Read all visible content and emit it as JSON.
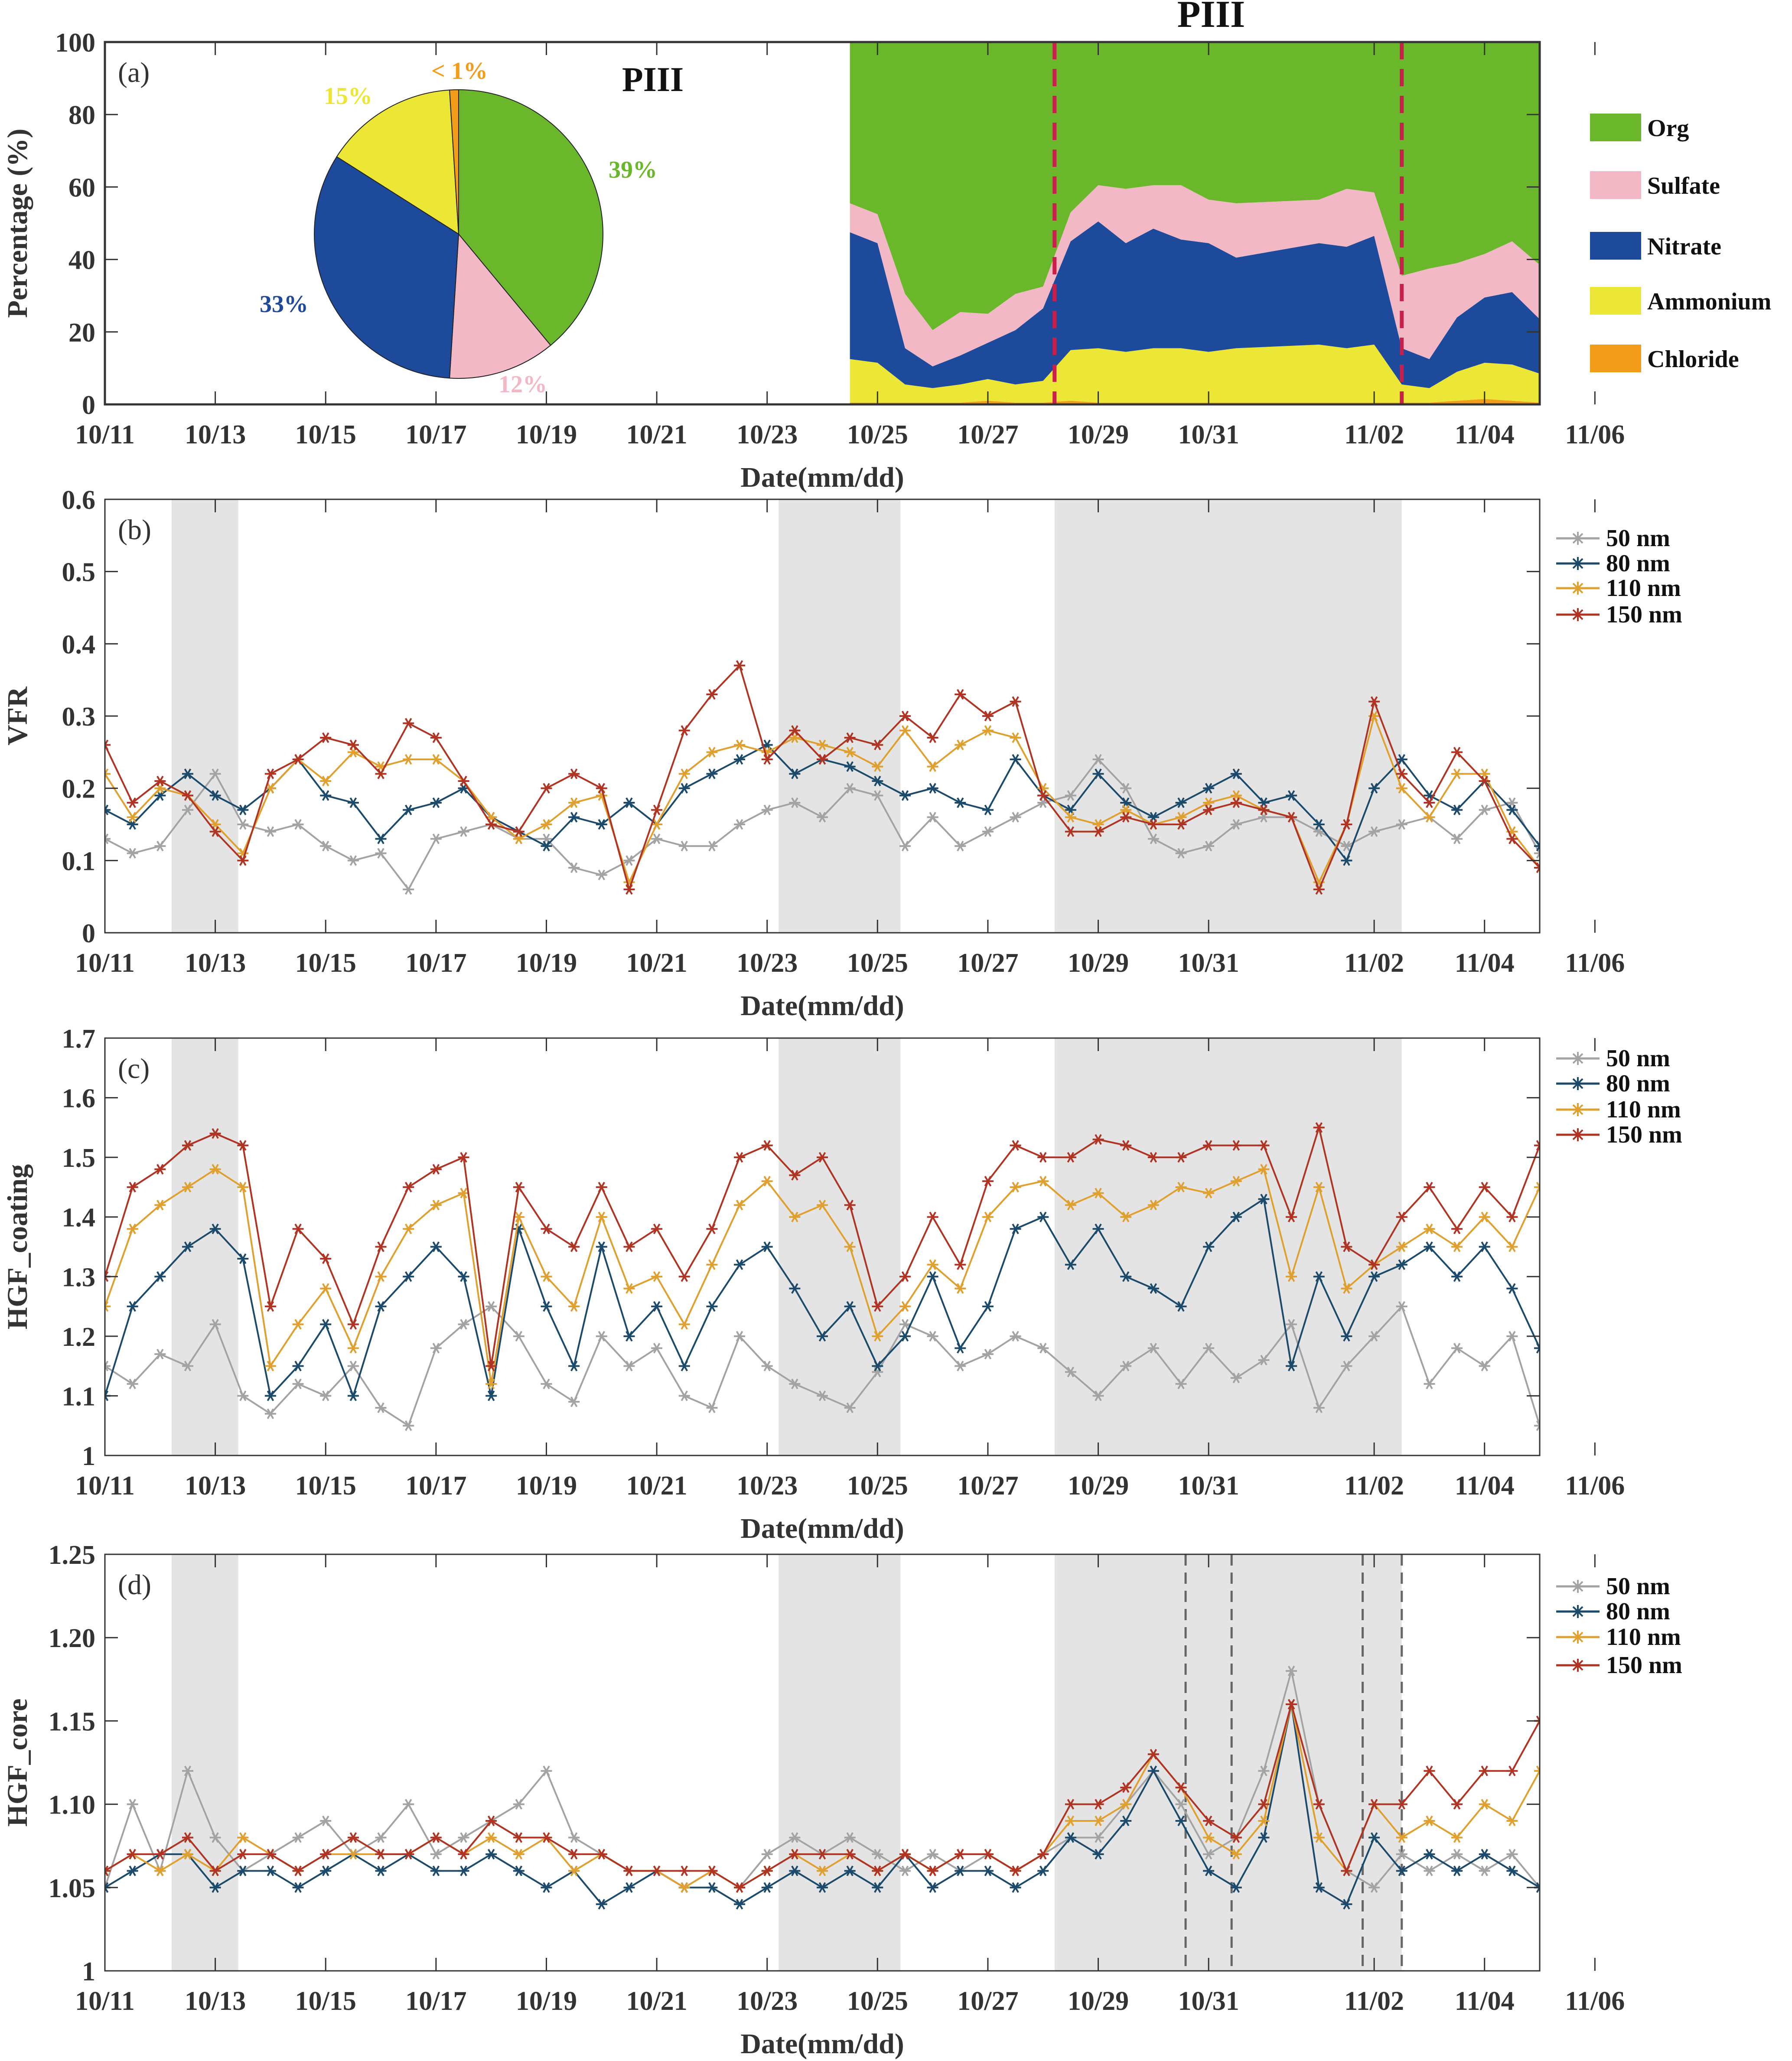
{
  "colors": {
    "Org": "#6ab72c",
    "Sulfate": "#f2b8c6",
    "Nitrate": "#1e4a9c",
    "Ammonium": "#ece636",
    "Chloride": "#f39c1a",
    "50 nm": "#a3a3a3",
    "80 nm": "#1b4a6b",
    "110 nm": "#e0a030",
    "150 nm": "#b03423",
    "shade": "#e4e4e4",
    "period_line_a": "#c8204a",
    "period_line_d": "#666666"
  },
  "x_ticks": [
    "10/11",
    "10/13",
    "10/15",
    "10/17",
    "10/19",
    "10/21",
    "10/23",
    "10/25",
    "10/27",
    "10/29",
    "10/31",
    "11/02",
    "11/04",
    "11/06"
  ],
  "x_range": [
    "10/11 00:00",
    "11/06 00:00"
  ],
  "chart_data": [
    {
      "panel": "(a)",
      "type": "area",
      "stacked": true,
      "top_title": "PIII",
      "xlabel": "Date(mm/dd)",
      "ylabel": "Percentage (%)",
      "ylim": [
        0,
        100
      ],
      "y_ticks": [
        "0",
        "20",
        "40",
        "60",
        "80",
        "100"
      ],
      "period_markers": [
        "10/28 05:00",
        "11/02 12:00"
      ],
      "legend": [
        "Org",
        "Sulfate",
        "Nitrate",
        "Ammonium",
        "Chloride"
      ],
      "x": [
        "10/24 12:00",
        "10/25 00:00",
        "10/25 12:00",
        "10/26 00:00",
        "10/26 12:00",
        "10/27 00:00",
        "10/27 12:00",
        "10/28 00:00",
        "10/28 12:00",
        "10/29 00:00",
        "10/29 12:00",
        "10/30 00:00",
        "10/30 12:00",
        "10/31 00:00",
        "10/31 12:00",
        "11/01 00:00",
        "11/01 12:00",
        "11/02 00:00",
        "11/02 12:00",
        "11/03 00:00",
        "11/03 12:00",
        "11/04 00:00",
        "11/04 12:00",
        "11/05 00:00",
        "11/05 12:00",
        "11/06 00:00"
      ],
      "series": [
        {
          "name": "Chloride",
          "values": [
            0.5,
            0.5,
            0.5,
            0.5,
            0.5,
            1,
            0.5,
            0.5,
            1,
            0.5,
            0.5,
            0.5,
            0.5,
            0.5,
            0.5,
            0.5,
            0.5,
            0.5,
            0.5,
            0.5,
            1,
            1.5,
            1,
            0.5,
            0.5,
            0.5
          ]
        },
        {
          "name": "Ammonium",
          "values": [
            12,
            11,
            5,
            4,
            5,
            6,
            5,
            6,
            14,
            15,
            14,
            15,
            15,
            14,
            15,
            16,
            15,
            16,
            5,
            4,
            8,
            10,
            10,
            8,
            10,
            8
          ]
        },
        {
          "name": "Nitrate",
          "values": [
            35,
            33,
            10,
            6,
            8,
            10,
            15,
            20,
            30,
            35,
            30,
            33,
            30,
            30,
            25,
            28,
            28,
            30,
            10,
            8,
            15,
            18,
            20,
            15,
            20,
            12
          ]
        },
        {
          "name": "Sulfate",
          "values": [
            8,
            8,
            15,
            10,
            12,
            8,
            10,
            6,
            8,
            10,
            15,
            12,
            15,
            12,
            15,
            12,
            16,
            12,
            20,
            25,
            15,
            12,
            14,
            15,
            12,
            12
          ]
        },
        {
          "name": "Org",
          "values": "remainder to 100"
        }
      ],
      "pie": {
        "title": "PIII",
        "slices": [
          {
            "name": "Org",
            "value": 39,
            "label": "39%"
          },
          {
            "name": "Sulfate",
            "value": 12,
            "label": "12%"
          },
          {
            "name": "Nitrate",
            "value": 33,
            "label": "33%"
          },
          {
            "name": "Ammonium",
            "value": 15,
            "label": "15%"
          },
          {
            "name": "Chloride",
            "value": 1,
            "label": "< 1%"
          }
        ]
      }
    },
    {
      "panel": "(b)",
      "type": "line",
      "xlabel": "Date(mm/dd)",
      "ylabel": "VFR",
      "ylim": [
        0,
        0.6
      ],
      "y_ticks": [
        "0",
        "0.1",
        "0.2",
        "0.3",
        "0.4",
        "0.5",
        "0.6"
      ],
      "shaded_periods": [
        [
          "10/12 05:00",
          "10/13 10:00"
        ],
        [
          "10/23 05:00",
          "10/25 10:00"
        ],
        [
          "10/28 05:00",
          "11/02 12:00"
        ]
      ],
      "legend": [
        "50 nm",
        "80 nm",
        "110 nm",
        "150 nm"
      ],
      "series": [
        {
          "name": "50 nm",
          "values": [
            0.13,
            0.11,
            0.12,
            0.17,
            0.22,
            0.15,
            0.14,
            0.15,
            0.12,
            0.1,
            0.11,
            0.06,
            0.13,
            0.14,
            0.15,
            0.13,
            0.13,
            0.09,
            0.08,
            0.1,
            0.13,
            0.12,
            0.12,
            0.15,
            0.17,
            0.18,
            0.16,
            0.2,
            0.19,
            0.12,
            0.16,
            0.12,
            0.14,
            0.16,
            0.18,
            0.19,
            0.24,
            0.2,
            0.13,
            0.11,
            0.12,
            0.15,
            0.16,
            0.16,
            0.14,
            0.12,
            0.14,
            0.15,
            0.16,
            0.13,
            0.17,
            0.18,
            0.11
          ]
        },
        {
          "name": "80 nm",
          "values": [
            0.17,
            0.15,
            0.19,
            0.22,
            0.19,
            0.17,
            0.2,
            0.24,
            0.19,
            0.18,
            0.13,
            0.17,
            0.18,
            0.2,
            0.16,
            0.14,
            0.12,
            0.16,
            0.15,
            0.18,
            0.15,
            0.2,
            0.22,
            0.24,
            0.26,
            0.22,
            0.24,
            0.23,
            0.21,
            0.19,
            0.2,
            0.18,
            0.17,
            0.24,
            0.19,
            0.17,
            0.22,
            0.18,
            0.16,
            0.18,
            0.2,
            0.22,
            0.18,
            0.19,
            0.15,
            0.1,
            0.2,
            0.24,
            0.19,
            0.17,
            0.21,
            0.17,
            0.12
          ]
        },
        {
          "name": "110 nm",
          "values": [
            0.22,
            0.16,
            0.2,
            0.19,
            0.15,
            0.11,
            0.2,
            0.24,
            0.21,
            0.25,
            0.23,
            0.24,
            0.24,
            0.21,
            0.16,
            0.13,
            0.15,
            0.18,
            0.19,
            0.07,
            0.15,
            0.22,
            0.25,
            0.26,
            0.25,
            0.27,
            0.26,
            0.25,
            0.23,
            0.28,
            0.23,
            0.26,
            0.28,
            0.27,
            0.2,
            0.16,
            0.15,
            0.17,
            0.15,
            0.16,
            0.18,
            0.19,
            0.17,
            0.16,
            0.07,
            0.15,
            0.3,
            0.2,
            0.16,
            0.22,
            0.22,
            0.14,
            0.09
          ]
        },
        {
          "name": "150 nm",
          "values": [
            0.26,
            0.18,
            0.21,
            0.19,
            0.14,
            0.1,
            0.22,
            0.24,
            0.27,
            0.26,
            0.22,
            0.29,
            0.27,
            0.21,
            0.15,
            0.14,
            0.2,
            0.22,
            0.2,
            0.06,
            0.17,
            0.28,
            0.33,
            0.37,
            0.24,
            0.28,
            0.24,
            0.27,
            0.26,
            0.3,
            0.27,
            0.33,
            0.3,
            0.32,
            0.19,
            0.14,
            0.14,
            0.16,
            0.15,
            0.15,
            0.17,
            0.18,
            0.17,
            0.16,
            0.06,
            0.15,
            0.32,
            0.22,
            0.18,
            0.25,
            0.21,
            0.13,
            0.09
          ]
        }
      ]
    },
    {
      "panel": "(c)",
      "type": "line",
      "xlabel": "Date(mm/dd)",
      "ylabel": "HGF_coating",
      "ylim": [
        1,
        1.7
      ],
      "y_ticks": [
        "1",
        "1.1",
        "1.2",
        "1.3",
        "1.4",
        "1.5",
        "1.6",
        "1.7"
      ],
      "shaded_periods": [
        [
          "10/12 05:00",
          "10/13 10:00"
        ],
        [
          "10/23 05:00",
          "10/25 10:00"
        ],
        [
          "10/28 05:00",
          "11/02 12:00"
        ]
      ],
      "legend": [
        "50 nm",
        "80 nm",
        "110 nm",
        "150 nm"
      ],
      "series": [
        {
          "name": "50 nm",
          "values": [
            1.15,
            1.12,
            1.17,
            1.15,
            1.22,
            1.1,
            1.07,
            1.12,
            1.1,
            1.15,
            1.08,
            1.05,
            1.18,
            1.22,
            1.25,
            1.2,
            1.12,
            1.09,
            1.2,
            1.15,
            1.18,
            1.1,
            1.08,
            1.2,
            1.15,
            1.12,
            1.1,
            1.08,
            1.14,
            1.22,
            1.2,
            1.15,
            1.17,
            1.2,
            1.18,
            1.14,
            1.1,
            1.15,
            1.18,
            1.12,
            1.18,
            1.13,
            1.16,
            1.22,
            1.08,
            1.15,
            1.2,
            1.25,
            1.12,
            1.18,
            1.15,
            1.2,
            1.05
          ]
        },
        {
          "name": "80 nm",
          "values": [
            1.1,
            1.25,
            1.3,
            1.35,
            1.38,
            1.33,
            1.1,
            1.15,
            1.22,
            1.1,
            1.25,
            1.3,
            1.35,
            1.3,
            1.1,
            1.38,
            1.25,
            1.15,
            1.35,
            1.2,
            1.25,
            1.15,
            1.25,
            1.32,
            1.35,
            1.28,
            1.2,
            1.25,
            1.15,
            1.2,
            1.3,
            1.18,
            1.25,
            1.38,
            1.4,
            1.32,
            1.38,
            1.3,
            1.28,
            1.25,
            1.35,
            1.4,
            1.43,
            1.15,
            1.3,
            1.2,
            1.3,
            1.32,
            1.35,
            1.3,
            1.35,
            1.28,
            1.18
          ]
        },
        {
          "name": "110 nm",
          "values": [
            1.25,
            1.38,
            1.42,
            1.45,
            1.48,
            1.45,
            1.15,
            1.22,
            1.28,
            1.18,
            1.3,
            1.38,
            1.42,
            1.44,
            1.12,
            1.4,
            1.3,
            1.25,
            1.4,
            1.28,
            1.3,
            1.22,
            1.32,
            1.42,
            1.46,
            1.4,
            1.42,
            1.35,
            1.2,
            1.25,
            1.32,
            1.28,
            1.4,
            1.45,
            1.46,
            1.42,
            1.44,
            1.4,
            1.42,
            1.45,
            1.44,
            1.46,
            1.48,
            1.3,
            1.45,
            1.28,
            1.32,
            1.35,
            1.38,
            1.35,
            1.4,
            1.35,
            1.45
          ]
        },
        {
          "name": "150 nm",
          "values": [
            1.3,
            1.45,
            1.48,
            1.52,
            1.54,
            1.52,
            1.25,
            1.38,
            1.33,
            1.22,
            1.35,
            1.45,
            1.48,
            1.5,
            1.15,
            1.45,
            1.38,
            1.35,
            1.45,
            1.35,
            1.38,
            1.3,
            1.38,
            1.5,
            1.52,
            1.47,
            1.5,
            1.42,
            1.25,
            1.3,
            1.4,
            1.32,
            1.46,
            1.52,
            1.5,
            1.5,
            1.53,
            1.52,
            1.5,
            1.5,
            1.52,
            1.52,
            1.52,
            1.4,
            1.55,
            1.35,
            1.32,
            1.4,
            1.45,
            1.38,
            1.45,
            1.4,
            1.52
          ]
        }
      ]
    },
    {
      "panel": "(d)",
      "type": "line",
      "xlabel": "Date(mm/dd)",
      "ylabel": "HGF_core",
      "ylim": [
        1,
        1.25
      ],
      "y_ticks": [
        "1",
        "1.05",
        "1.10",
        "1.15",
        "1.20",
        "1.25"
      ],
      "shaded_periods": [
        [
          "10/12 05:00",
          "10/13 10:00"
        ],
        [
          "10/23 05:00",
          "10/25 10:00"
        ],
        [
          "10/28 05:00",
          "11/02 12:00"
        ]
      ],
      "dashed_markers": [
        "10/30 14:00",
        "10/31 10:00",
        "11/01 19:00",
        "11/02 12:00"
      ],
      "legend": [
        "50 nm",
        "80 nm",
        "110 nm",
        "150 nm"
      ],
      "series": [
        {
          "name": "50 nm",
          "values": [
            1.05,
            1.1,
            1.06,
            1.12,
            1.08,
            1.06,
            1.07,
            1.08,
            1.09,
            1.07,
            1.08,
            1.1,
            1.07,
            1.08,
            1.09,
            1.1,
            1.12,
            1.08,
            1.07,
            1.06,
            1.06,
            1.05,
            1.06,
            1.05,
            1.07,
            1.08,
            1.07,
            1.08,
            1.07,
            1.06,
            1.07,
            1.06,
            1.07,
            1.06,
            1.07,
            1.08,
            1.08,
            1.1,
            1.12,
            1.1,
            1.07,
            1.08,
            1.12,
            1.18,
            1.1,
            1.06,
            1.05,
            1.07,
            1.06,
            1.07,
            1.06,
            1.07,
            1.05
          ]
        },
        {
          "name": "80 nm",
          "values": [
            1.05,
            1.06,
            1.07,
            1.07,
            1.05,
            1.06,
            1.06,
            1.05,
            1.06,
            1.07,
            1.06,
            1.07,
            1.06,
            1.06,
            1.07,
            1.06,
            1.05,
            1.06,
            1.04,
            1.05,
            1.06,
            1.05,
            1.05,
            1.04,
            1.05,
            1.06,
            1.05,
            1.06,
            1.05,
            1.07,
            1.05,
            1.06,
            1.06,
            1.05,
            1.06,
            1.08,
            1.07,
            1.09,
            1.12,
            1.09,
            1.06,
            1.05,
            1.08,
            1.16,
            1.05,
            1.04,
            1.08,
            1.06,
            1.07,
            1.06,
            1.07,
            1.06,
            1.05
          ]
        },
        {
          "name": "110 nm",
          "values": [
            1.06,
            1.07,
            1.06,
            1.07,
            1.06,
            1.08,
            1.07,
            1.06,
            1.07,
            1.07,
            1.07,
            1.07,
            1.08,
            1.07,
            1.08,
            1.07,
            1.08,
            1.06,
            1.07,
            1.06,
            1.06,
            1.05,
            1.06,
            1.05,
            1.06,
            1.07,
            1.06,
            1.07,
            1.06,
            1.07,
            1.06,
            1.07,
            1.07,
            1.06,
            1.07,
            1.09,
            1.09,
            1.1,
            1.13,
            1.11,
            1.08,
            1.07,
            1.09,
            1.16,
            1.08,
            1.06,
            1.1,
            1.08,
            1.09,
            1.08,
            1.1,
            1.09,
            1.12
          ]
        },
        {
          "name": "150 nm",
          "values": [
            1.06,
            1.07,
            1.07,
            1.08,
            1.06,
            1.07,
            1.07,
            1.06,
            1.07,
            1.08,
            1.07,
            1.07,
            1.08,
            1.07,
            1.09,
            1.08,
            1.08,
            1.07,
            1.07,
            1.06,
            1.06,
            1.06,
            1.06,
            1.05,
            1.06,
            1.07,
            1.07,
            1.07,
            1.06,
            1.07,
            1.06,
            1.07,
            1.07,
            1.06,
            1.07,
            1.1,
            1.1,
            1.11,
            1.13,
            1.11,
            1.09,
            1.08,
            1.1,
            1.16,
            1.1,
            1.06,
            1.1,
            1.1,
            1.12,
            1.1,
            1.12,
            1.12,
            1.15
          ]
        }
      ]
    }
  ]
}
